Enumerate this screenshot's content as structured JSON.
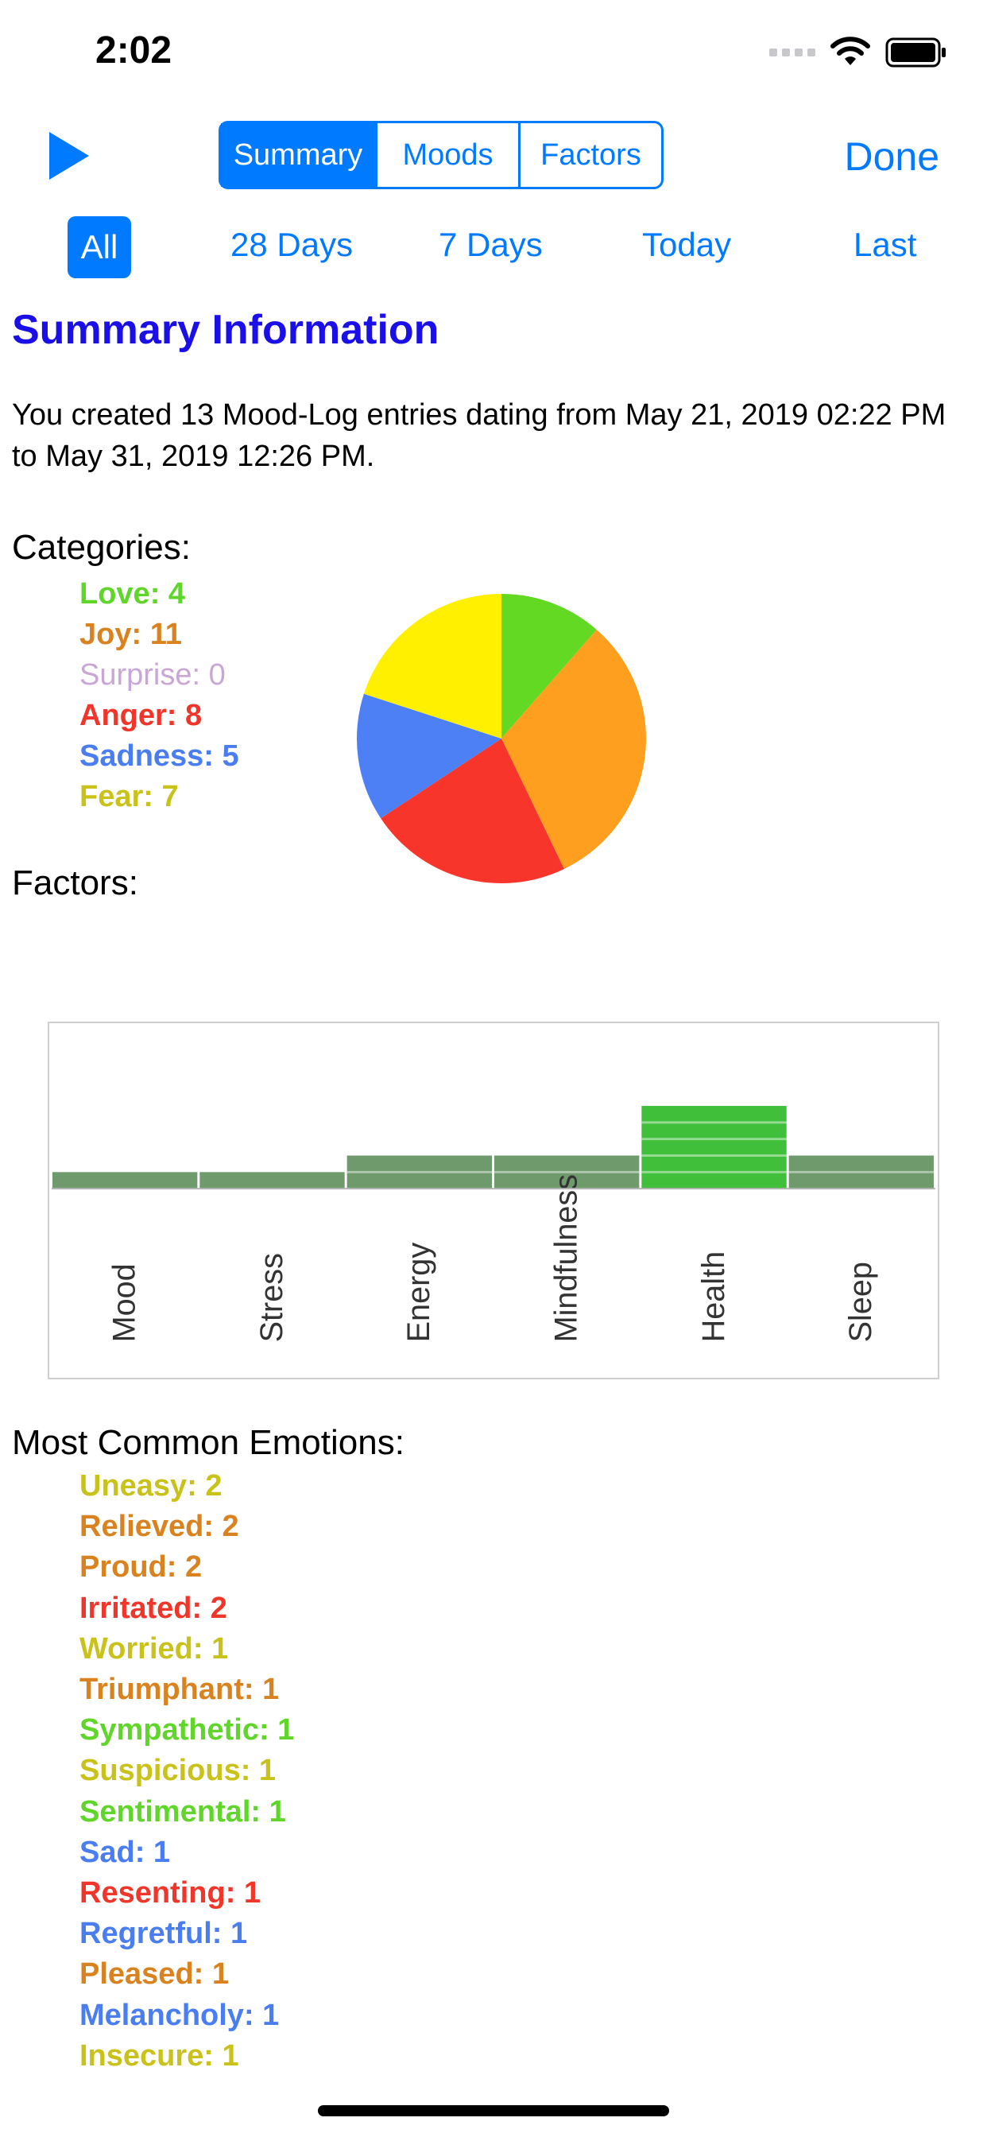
{
  "status": {
    "time": "2:02"
  },
  "nav": {
    "tabs": [
      "Summary",
      "Moods",
      "Factors"
    ],
    "selected_tab": "Summary",
    "done_label": "Done",
    "accent": "#007aff"
  },
  "range": {
    "all": "All",
    "d28": "28 Days",
    "d7": "7 Days",
    "today": "Today",
    "last": "Last",
    "selected": "All"
  },
  "summary": {
    "heading": "Summary Information",
    "text": "You created 13 Mood-Log entries dating from May 21, 2019 02:22 PM to May 31, 2019 12:26 PM."
  },
  "categories": {
    "label": "Categories:",
    "items": [
      {
        "text": "Love: 4",
        "color": "#5fd629"
      },
      {
        "text": "Joy: 11",
        "color": "#d98320"
      },
      {
        "text": "Surprise: 0",
        "color": "#c9a6d6",
        "normal": true
      },
      {
        "text": "Anger: 8",
        "color": "#f0362a"
      },
      {
        "text": "Sadness: 5",
        "color": "#4a7ef0"
      },
      {
        "text": "Fear: 7",
        "color": "#c9c21a"
      }
    ]
  },
  "factors_label": "Factors:",
  "emotions": {
    "label": "Most Common Emotions:",
    "items": [
      {
        "text": "Uneasy: 2",
        "color": "#c9c21a"
      },
      {
        "text": "Relieved: 2",
        "color": "#d98320"
      },
      {
        "text": "Proud: 2",
        "color": "#d98320"
      },
      {
        "text": "Irritated: 2",
        "color": "#f0362a"
      },
      {
        "text": "Worried: 1",
        "color": "#c9c21a"
      },
      {
        "text": "Triumphant: 1",
        "color": "#d98320"
      },
      {
        "text": "Sympathetic: 1",
        "color": "#5fd629"
      },
      {
        "text": "Suspicious: 1",
        "color": "#c9c21a"
      },
      {
        "text": "Sentimental: 1",
        "color": "#5fd629"
      },
      {
        "text": "Sad: 1",
        "color": "#4a7ef0"
      },
      {
        "text": "Resenting: 1",
        "color": "#f0362a"
      },
      {
        "text": "Regretful: 1",
        "color": "#4a7ef0"
      },
      {
        "text": "Pleased: 1",
        "color": "#d98320"
      },
      {
        "text": "Melancholy: 1",
        "color": "#4a7ef0"
      },
      {
        "text": "Insecure: 1",
        "color": "#c9c21a"
      }
    ]
  },
  "chart_data": [
    {
      "type": "pie",
      "labels": [
        "Love",
        "Joy",
        "Surprise",
        "Anger",
        "Sadness",
        "Fear"
      ],
      "values": [
        4,
        11,
        0,
        8,
        5,
        7
      ],
      "colors": [
        "#63d923",
        "#ff9f1f",
        "#c9a6d6",
        "#f7352a",
        "#4d7ff5",
        "#fff000"
      ]
    },
    {
      "type": "bar",
      "categories": [
        "Mood",
        "Stress",
        "Energy",
        "Mindfulness",
        "Health",
        "Sleep"
      ],
      "values": [
        1,
        1,
        2,
        2,
        5,
        2
      ],
      "colors": [
        "#6e9a6c",
        "#6e9a6c",
        "#6e9a6c",
        "#6e9a6c",
        "#3fbf3a",
        "#6e9a6c"
      ],
      "ylim": [
        0,
        10
      ]
    }
  ]
}
